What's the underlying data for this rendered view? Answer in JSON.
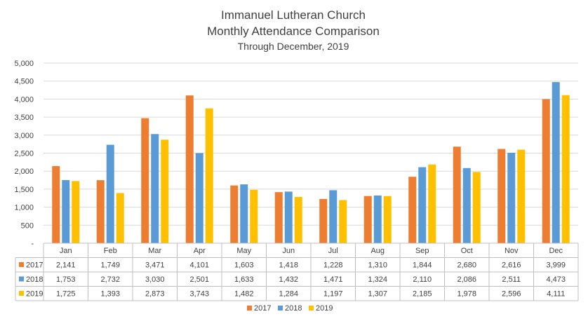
{
  "chart_data": {
    "type": "bar",
    "title": [
      "Immanuel Lutheran Church",
      "Monthly Attendance Comparison"
    ],
    "subtitle": "Through December, 2019",
    "xlabel": "",
    "ylabel": "",
    "ylim": [
      0,
      5000
    ],
    "y_ticks": [
      "-",
      "500",
      "1,000",
      "1,500",
      "2,000",
      "2,500",
      "3,000",
      "3,500",
      "4,000",
      "4,500",
      "5,000"
    ],
    "grid": true,
    "legend_position": "bottom",
    "categories": [
      "Jan",
      "Feb",
      "Mar",
      "Apr",
      "May",
      "Jun",
      "Jul",
      "Aug",
      "Sep",
      "Oct",
      "Nov",
      "Dec"
    ],
    "series": [
      {
        "name": "2017",
        "color": "#ED7D31",
        "values": [
          2141,
          1749,
          3471,
          4101,
          1603,
          1418,
          1228,
          1310,
          1844,
          2680,
          2616,
          3999
        ],
        "labels": [
          "2,141",
          "1,749",
          "3,471",
          "4,101",
          "1,603",
          "1,418",
          "1,228",
          "1,310",
          "1,844",
          "2,680",
          "2,616",
          "3,999"
        ]
      },
      {
        "name": "2018",
        "color": "#5B9BD5",
        "values": [
          1753,
          2732,
          3030,
          2501,
          1633,
          1432,
          1471,
          1324,
          2110,
          2086,
          2511,
          4473
        ],
        "labels": [
          "1,753",
          "2,732",
          "3,030",
          "2,501",
          "1,633",
          "1,432",
          "1,471",
          "1,324",
          "2,110",
          "2,086",
          "2,511",
          "4,473"
        ]
      },
      {
        "name": "2019",
        "color": "#FFC000",
        "values": [
          1725,
          1393,
          2873,
          3743,
          1482,
          1284,
          1197,
          1307,
          2185,
          1978,
          2596,
          4111
        ],
        "labels": [
          "1,725",
          "1,393",
          "2,873",
          "3,743",
          "1,482",
          "1,284",
          "1,197",
          "1,307",
          "2,185",
          "1,978",
          "2,596",
          "4,111"
        ]
      }
    ]
  }
}
